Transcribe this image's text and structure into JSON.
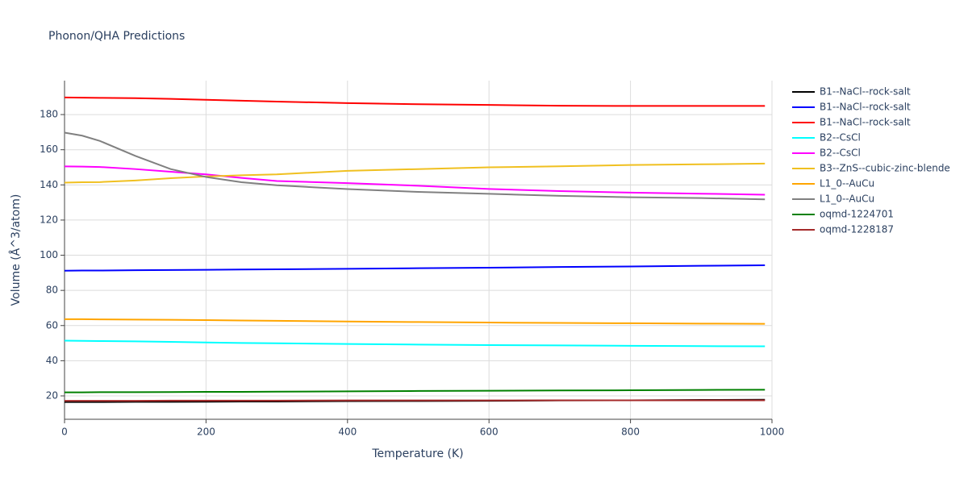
{
  "chart_data": {
    "type": "line",
    "title": "Phonon/QHA Predictions",
    "x_label": "Temperature (K)",
    "y_label": "Volume (Å^3/atom)",
    "x": [
      0,
      25,
      50,
      100,
      150,
      200,
      250,
      300,
      400,
      500,
      600,
      700,
      800,
      900,
      990
    ],
    "series": [
      {
        "name": "B1--NaCl--rock-salt",
        "color": "#000000",
        "values": [
          16.5,
          16.5,
          16.5,
          16.6,
          16.6,
          16.7,
          16.8,
          16.8,
          17.0,
          17.1,
          17.2,
          17.4,
          17.5,
          17.7,
          17.8
        ]
      },
      {
        "name": "B1--NaCl--rock-salt",
        "color": "#0000ff",
        "values": [
          91.2,
          91.3,
          91.3,
          91.5,
          91.6,
          91.7,
          91.9,
          92.0,
          92.3,
          92.6,
          92.9,
          93.3,
          93.6,
          94.0,
          94.3
        ]
      },
      {
        "name": "B1--NaCl--rock-salt",
        "color": "#ff0000",
        "values": [
          189.7,
          189.6,
          189.5,
          189.3,
          188.9,
          188.4,
          187.9,
          187.4,
          186.5,
          185.9,
          185.5,
          185.0,
          184.9,
          184.9,
          184.9
        ]
      },
      {
        "name": "B2--CsCl",
        "color": "#00ffff",
        "values": [
          51.4,
          51.3,
          51.2,
          51.0,
          50.7,
          50.4,
          50.1,
          49.9,
          49.5,
          49.2,
          48.9,
          48.7,
          48.5,
          48.3,
          48.2
        ]
      },
      {
        "name": "B2--CsCl",
        "color": "#ff00ff",
        "values": [
          150.5,
          150.4,
          150.2,
          149.0,
          147.5,
          146.0,
          144.0,
          142.2,
          141.0,
          139.5,
          137.7,
          136.5,
          135.6,
          135.0,
          134.4
        ]
      },
      {
        "name": "B3--ZnS--cubic-zinc-blende",
        "color": "#f0c020",
        "values": [
          141.3,
          141.5,
          141.6,
          142.5,
          143.8,
          144.8,
          145.5,
          146.0,
          148.0,
          149.0,
          150.0,
          150.6,
          151.3,
          151.7,
          152.1
        ]
      },
      {
        "name": "L1_0--AuCu",
        "color": "#ffa500",
        "values": [
          63.6,
          63.6,
          63.5,
          63.4,
          63.3,
          63.1,
          62.9,
          62.7,
          62.3,
          62.0,
          61.7,
          61.5,
          61.3,
          61.1,
          61.0
        ]
      },
      {
        "name": "L1_0--AuCu",
        "color": "#808080",
        "values": [
          169.7,
          168.0,
          165.0,
          156.5,
          149.0,
          144.5,
          141.5,
          139.8,
          137.6,
          136.0,
          134.9,
          133.8,
          133.0,
          132.5,
          131.8
        ]
      },
      {
        "name": "oqmd-1224701",
        "color": "#008000",
        "values": [
          22.0,
          22.0,
          22.1,
          22.1,
          22.2,
          22.3,
          22.3,
          22.4,
          22.6,
          22.8,
          22.9,
          23.1,
          23.2,
          23.4,
          23.5
        ]
      },
      {
        "name": "oqmd-1228187",
        "color": "#a52a2a",
        "values": [
          17.2,
          17.2,
          17.2,
          17.2,
          17.3,
          17.3,
          17.3,
          17.3,
          17.4,
          17.4,
          17.4,
          17.5,
          17.5,
          17.5,
          17.5
        ]
      }
    ],
    "xlim": [
      0,
      1000
    ],
    "xticks": [
      0,
      200,
      400,
      600,
      800,
      1000
    ],
    "ylim": [
      6.7,
      199.3
    ],
    "yticks": [
      20,
      40,
      60,
      80,
      100,
      120,
      140,
      160,
      180
    ],
    "grid": true,
    "legend": "right"
  }
}
